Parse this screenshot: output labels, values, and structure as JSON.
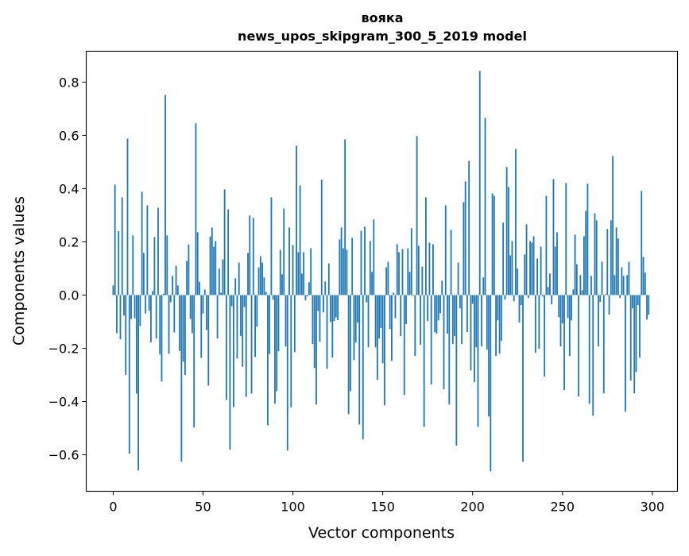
{
  "chart_data": {
    "type": "bar",
    "title": "воякa",
    "title_lines": [
      "вояка",
      "news_upos_skipgram_300_5_2019 model"
    ],
    "xlabel": "Vector components",
    "ylabel": "Components values",
    "xlim": [
      -15,
      314
    ],
    "ylim": [
      -0.737,
      0.916
    ],
    "xticks": [
      0,
      50,
      100,
      150,
      200,
      250,
      300
    ],
    "xtick_labels": [
      "0",
      "50",
      "100",
      "150",
      "200",
      "250",
      "300"
    ],
    "yticks": [
      -0.6,
      -0.4,
      -0.2,
      0.0,
      0.2,
      0.4,
      0.6,
      0.8
    ],
    "ytick_labels": [
      "−0.6",
      "−0.4",
      "−0.2",
      "0.0",
      "0.2",
      "0.4",
      "0.6",
      "0.8"
    ],
    "grid": false,
    "color": "#1f77b4",
    "values": [
      0.036,
      0.415,
      -0.143,
      0.24,
      -0.166,
      0.367,
      -0.077,
      -0.3,
      0.588,
      -0.596,
      -0.09,
      0.224,
      -0.087,
      -0.37,
      -0.659,
      -0.116,
      0.388,
      0.158,
      -0.069,
      0.337,
      -0.059,
      -0.178,
      0.015,
      0.218,
      -0.163,
      0.328,
      -0.223,
      -0.325,
      0.005,
      0.752,
      0.224,
      -0.22,
      -0.027,
      0.072,
      -0.14,
      0.11,
      0.036,
      -0.21,
      -0.626,
      -0.25,
      -0.3,
      0.128,
      0.19,
      -0.09,
      -0.143,
      -0.497,
      0.645,
      0.236,
      0.05,
      -0.236,
      -0.069,
      0.021,
      -0.131,
      -0.34,
      0.22,
      0.254,
      0.182,
      0.203,
      -0.163,
      0.099,
      0.009,
      0.134,
      0.397,
      -0.394,
      0.322,
      -0.581,
      -0.042,
      -0.421,
      0.063,
      -0.238,
      0.122,
      -0.154,
      -0.269,
      -0.045,
      -0.382,
      0.158,
      0.299,
      -0.37,
      0.29,
      -0.232,
      -0.119,
      0.104,
      0.146,
      0.122,
      0.066,
      0.012,
      -0.489,
      -0.221,
      0.367,
      -0.017,
      -0.408,
      -0.361,
      -0.211,
      0.17,
      0.078,
      0.325,
      -0.193,
      -0.584,
      0.254,
      -0.421,
      0.188,
      -0.214,
      0.561,
      0.161,
      0.412,
      0.081,
      0.161,
      -0.02,
      -0.005,
      0.048,
      0.176,
      -0.184,
      -0.274,
      -0.411,
      -0.06,
      -0.175,
      0.433,
      -0.065,
      0.051,
      -0.277,
      0.119,
      -0.101,
      -0.235,
      -0.097,
      -0.084,
      -0.094,
      0.209,
      0.254,
      0.176,
      0.585,
      0.17,
      -0.447,
      -0.361,
      0.215,
      -0.244,
      -0.178,
      -0.103,
      -0.486,
      0.242,
      -0.542,
      0.257,
      -0.027,
      -0.196,
      0.203,
      0.087,
      0.284,
      -0.196,
      -0.318,
      -0.163,
      -0.124,
      -0.256,
      -0.414,
      0.104,
      0.125,
      -0.127,
      -0.247,
      0.009,
      -0.087,
      0.191,
      0.161,
      -0.154,
      0.173,
      -0.375,
      -0.109,
      0.176,
      0.087,
      0.251,
      -0.003,
      -0.229,
      0.597,
      0.185,
      -0.187,
      0.107,
      -0.495,
      0.367,
      -0.098,
      0.197,
      -0.336,
      0.191,
      -0.139,
      -0.145,
      -0.095,
      -0.068,
      0.054,
      -0.354,
      0.337,
      -0.145,
      -0.411,
      0.245,
      -0.184,
      -0.154,
      -0.566,
      0.122,
      -0.05,
      -0.184,
      0.349,
      0.427,
      -0.139,
      0.504,
      -0.283,
      -0.033,
      -0.327,
      -0.196,
      -0.495,
      0.842,
      -0.193,
      0.066,
      0.666,
      -0.205,
      -0.456,
      -0.662,
      0.382,
      0.373,
      -0.229,
      -0.095,
      -0.22,
      -0.172,
      0.272,
      -0.017,
      0.481,
      0.406,
      0.149,
      0.203,
      -0.023,
      0.549,
      0.099,
      -0.103,
      -0.038,
      -0.626,
      0.152,
      0.266,
      -0.011,
      0.203,
      0.197,
      0.221,
      -0.217,
      0.137,
      -0.202,
      0.182,
      -0.005,
      -0.306,
      0.373,
      0.03,
      0.081,
      -0.035,
      0.436,
      0.182,
      0.236,
      -0.083,
      -0.193,
      -0.106,
      -0.357,
      0.421,
      -0.086,
      -0.229,
      -0.095,
      0.021,
      0.227,
      0.116,
      -0.381,
      0.075,
      0.018,
      0.221,
      0.316,
      0.418,
      -0.408,
      0.072,
      -0.453,
      0.307,
      0.281,
      -0.193,
      -0.026,
      0.125,
      -0.369,
      0.003,
      0.248,
      -0.074,
      0.281,
      0.522,
      0.075,
      0.254,
      0.212,
      -0.011,
      0.104,
      0.072,
      -0.438,
      0.075,
      0.125,
      -0.321,
      -0.05,
      -0.369,
      -0.289,
      -0.038,
      -0.235,
      0.391,
      0.143,
      0.084,
      -0.092,
      -0.074
    ]
  }
}
